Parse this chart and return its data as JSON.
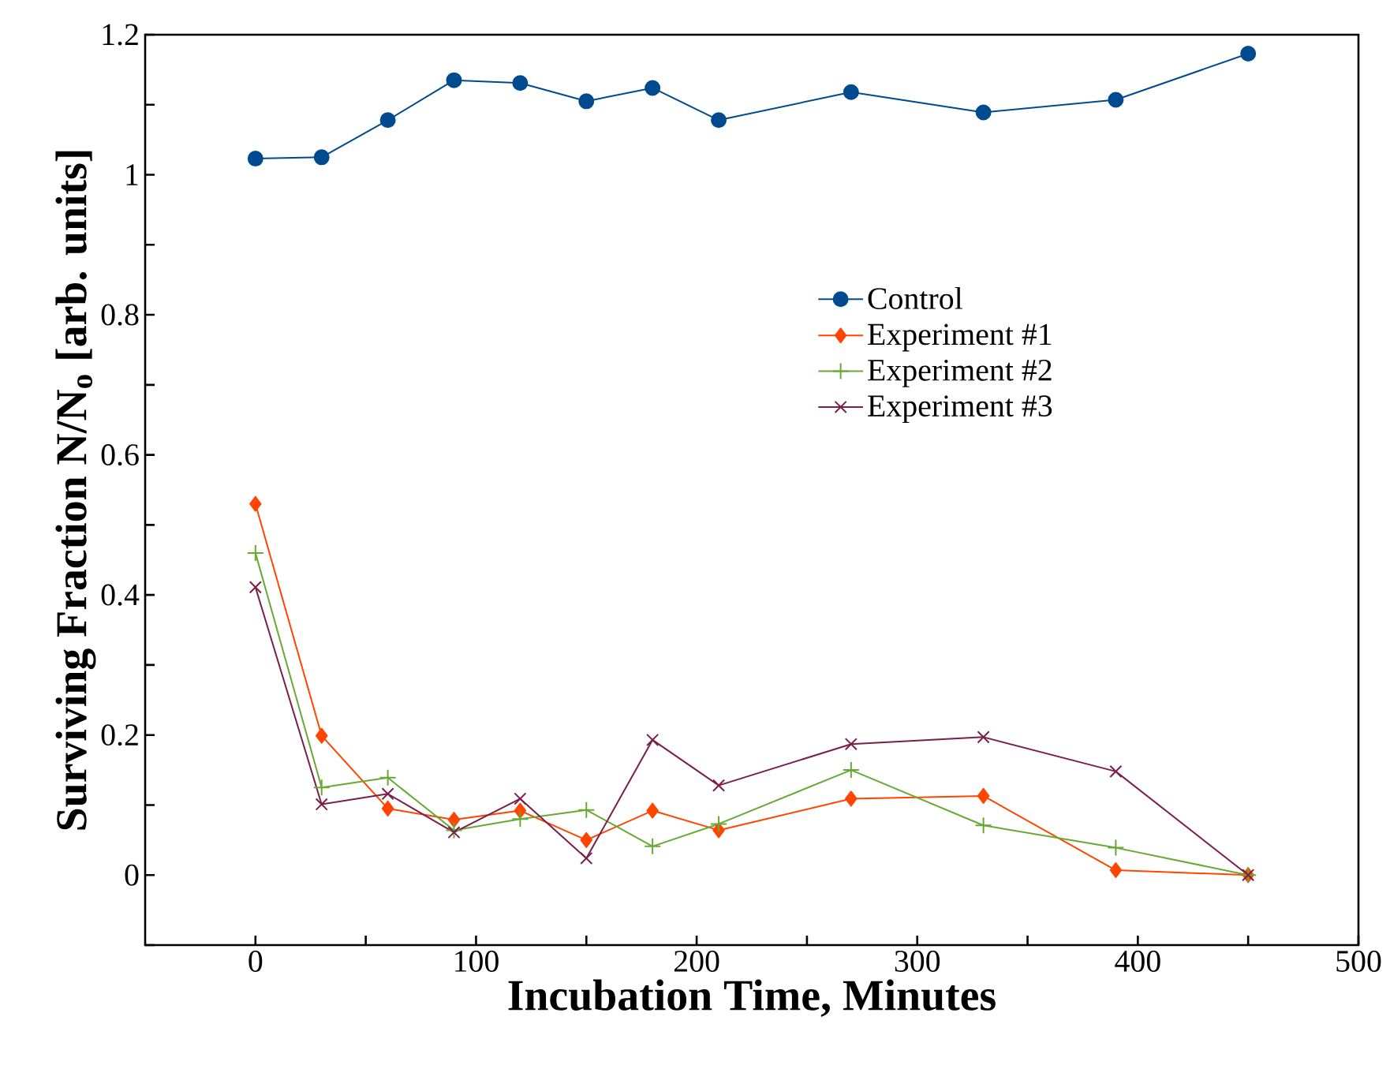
{
  "chart_data": {
    "type": "line",
    "xlabel": "Incubation Time, Minutes",
    "ylabel": "Surviving Fraction N/N$_{o}$ [arb. units]",
    "xlim": [
      -50,
      500
    ],
    "ylim": [
      -0.1,
      1.2
    ],
    "xticks": [
      0,
      {
        "value": 50,
        "label": null
      },
      100,
      {
        "value": 150,
        "label": null
      },
      200,
      {
        "value": 250,
        "label": null
      },
      300,
      {
        "value": 350,
        "label": null
      },
      400,
      {
        "value": 450,
        "label": null
      },
      500
    ],
    "yticks": [
      {
        "value": -0.1,
        "label": null
      },
      0,
      {
        "value": 0.1,
        "label": null
      },
      0.2,
      {
        "value": 0.3,
        "label": null
      },
      0.4,
      {
        "value": 0.5,
        "label": null
      },
      0.6,
      {
        "value": 0.7,
        "label": null
      },
      0.8,
      {
        "value": 0.9,
        "label": null
      },
      1,
      {
        "value": 1.1,
        "label": null
      },
      1.2
    ],
    "x": [
      0,
      30,
      60,
      90,
      120,
      150,
      180,
      210,
      270,
      330,
      390,
      450
    ],
    "legend": "right",
    "grid": false,
    "line_style": "solid",
    "series": [
      {
        "name": "Control",
        "color": "#004a8f",
        "marker": "circle",
        "values": [
          1.023,
          1.025,
          1.078,
          1.135,
          1.131,
          1.105,
          1.124,
          1.078,
          1.118,
          1.089,
          1.107,
          1.173
        ]
      },
      {
        "name": "Experiment #1",
        "color": "#ff4500",
        "marker": "diamond",
        "values": [
          0.53,
          0.199,
          0.095,
          0.079,
          0.092,
          0.05,
          0.092,
          0.064,
          0.109,
          0.113,
          0.007,
          0
        ]
      },
      {
        "name": "Experiment #2",
        "color": "#66aa33",
        "marker": "plus",
        "values": [
          0.46,
          0.125,
          0.139,
          0.064,
          0.08,
          0.093,
          0.041,
          0.073,
          0.15,
          0.071,
          0.039,
          0
        ]
      },
      {
        "name": "Experiment #3",
        "color": "#7a1f4a",
        "marker": "cross",
        "values": [
          0.411,
          0.101,
          0.116,
          0.061,
          0.109,
          0.024,
          0.193,
          0.128,
          0.187,
          0.197,
          0.148,
          0
        ]
      }
    ]
  }
}
